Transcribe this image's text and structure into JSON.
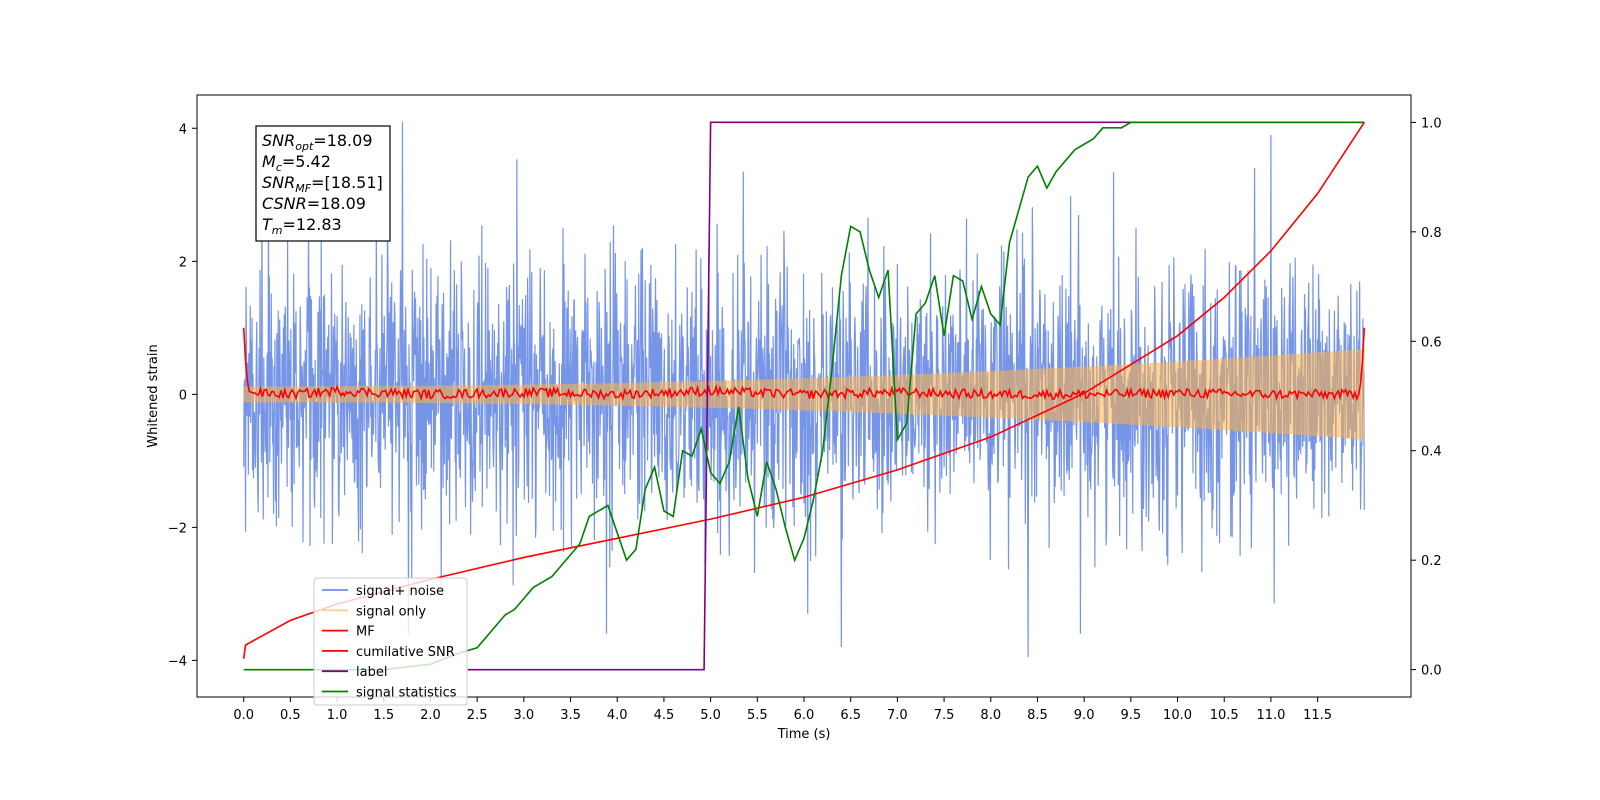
{
  "chart_data": {
    "type": "line",
    "xlabel": "Time (s)",
    "ylabel_left": "Whitened strain",
    "ylabel_right": "",
    "xlim": [
      -0.5,
      12.5
    ],
    "ylim_left": [
      -4.55,
      4.5
    ],
    "ylim_right": [
      -0.05,
      1.05
    ],
    "x_ticks": [
      "0.0",
      "0.5",
      "1.0",
      "1.5",
      "2.0",
      "2.5",
      "3.0",
      "3.5",
      "4.0",
      "4.5",
      "5.0",
      "5.5",
      "6.0",
      "6.5",
      "7.0",
      "7.5",
      "8.0",
      "8.5",
      "9.0",
      "9.5",
      "10.0",
      "10.5",
      "11.0",
      "11.5"
    ],
    "y_ticks_left": [
      "4",
      "2",
      "0",
      "−2",
      "−4"
    ],
    "y_ticks_right": [
      "1.0",
      "0.8",
      "0.6",
      "0.4",
      "0.2",
      "0.0"
    ],
    "grid": false,
    "legend_position": "lower-left",
    "info_box": {
      "lines": [
        {
          "main": "SNR",
          "sub": "opt",
          "rest": "=18.09"
        },
        {
          "main": "M",
          "sub": "c",
          "rest": "=5.42"
        },
        {
          "main": "SNR",
          "sub": "MF",
          "rest": "=[18.51]"
        },
        {
          "main": "CSNR",
          "sub": "",
          "rest": "=18.09"
        },
        {
          "main": "T",
          "sub": "m",
          "rest": "=12.83"
        }
      ]
    },
    "series": [
      {
        "name": "signal+ noise",
        "axis": "left",
        "color": "#6f8fe6",
        "kind": "noise",
        "x_range": [
          0,
          12
        ],
        "envelope": [
          -1.0,
          1.0
        ],
        "peaks": [
          {
            "x": 1.7,
            "y": 4.1
          },
          {
            "x": 11.0,
            "y": 3.9
          },
          {
            "x": 8.4,
            "y": -3.95
          },
          {
            "x": 6.4,
            "y": -3.8
          },
          {
            "x": 5.35,
            "y": 3.35
          }
        ]
      },
      {
        "name": "signal only",
        "axis": "left",
        "color": "#ffb347",
        "kind": "chirp",
        "x_range": [
          0,
          12
        ],
        "amplitude_start": 0.12,
        "amplitude_end": 0.68
      },
      {
        "name": "MF",
        "axis": "left",
        "color": "#ff0000",
        "x": [
          0.0,
          0.02,
          0.05,
          0.1,
          0.5,
          1.0,
          2.0,
          3.0,
          4.0,
          5.0,
          6.0,
          7.0,
          8.0,
          9.0,
          10.0,
          11.0,
          11.95,
          11.98,
          12.0
        ],
        "y": [
          1.0,
          0.5,
          0.05,
          0.02,
          0.0,
          0.05,
          0.0,
          0.03,
          0.0,
          0.05,
          0.0,
          0.03,
          0.0,
          0.0,
          0.02,
          0.0,
          0.0,
          0.5,
          1.0
        ]
      },
      {
        "name": "cumilative SNR",
        "axis": "right",
        "color": "#ff0000",
        "x": [
          0.0,
          0.02,
          0.5,
          1.0,
          2.0,
          3.0,
          4.0,
          5.0,
          6.0,
          7.0,
          8.0,
          9.0,
          10.0,
          10.5,
          11.0,
          11.5,
          12.0
        ],
        "y": [
          0.02,
          0.045,
          0.09,
          0.12,
          0.165,
          0.205,
          0.24,
          0.275,
          0.315,
          0.365,
          0.425,
          0.505,
          0.61,
          0.68,
          0.765,
          0.87,
          1.0
        ]
      },
      {
        "name": "label",
        "axis": "right",
        "color": "#800080",
        "x": [
          2.4,
          4.93,
          5.0,
          12.0
        ],
        "y": [
          0.0,
          0.0,
          1.0,
          1.0
        ]
      },
      {
        "name": "signal statistics",
        "axis": "right",
        "color": "#008000",
        "x": [
          0.0,
          0.5,
          1.0,
          1.5,
          2.0,
          2.3,
          2.5,
          2.6,
          2.7,
          2.8,
          2.9,
          3.0,
          3.1,
          3.2,
          3.3,
          3.4,
          3.5,
          3.6,
          3.7,
          3.8,
          3.9,
          4.0,
          4.1,
          4.2,
          4.3,
          4.4,
          4.5,
          4.6,
          4.7,
          4.8,
          4.9,
          5.0,
          5.1,
          5.2,
          5.3,
          5.4,
          5.5,
          5.6,
          5.7,
          5.8,
          5.9,
          6.0,
          6.1,
          6.2,
          6.3,
          6.4,
          6.5,
          6.6,
          6.7,
          6.8,
          6.9,
          7.0,
          7.1,
          7.2,
          7.3,
          7.4,
          7.5,
          7.6,
          7.7,
          7.8,
          7.9,
          8.0,
          8.1,
          8.2,
          8.3,
          8.4,
          8.5,
          8.6,
          8.7,
          8.8,
          8.9,
          9.0,
          9.1,
          9.2,
          9.3,
          9.4,
          9.5,
          9.8,
          10.0,
          11.0,
          12.0
        ],
        "y": [
          0.0,
          0.0,
          0.0,
          0.0,
          0.01,
          0.03,
          0.04,
          0.06,
          0.08,
          0.1,
          0.11,
          0.13,
          0.15,
          0.16,
          0.17,
          0.19,
          0.21,
          0.23,
          0.28,
          0.29,
          0.3,
          0.25,
          0.2,
          0.22,
          0.33,
          0.37,
          0.29,
          0.28,
          0.4,
          0.39,
          0.44,
          0.36,
          0.34,
          0.38,
          0.48,
          0.35,
          0.28,
          0.38,
          0.33,
          0.26,
          0.2,
          0.24,
          0.31,
          0.4,
          0.55,
          0.72,
          0.81,
          0.8,
          0.73,
          0.68,
          0.73,
          0.42,
          0.45,
          0.65,
          0.67,
          0.72,
          0.61,
          0.72,
          0.71,
          0.64,
          0.7,
          0.65,
          0.63,
          0.78,
          0.84,
          0.9,
          0.92,
          0.88,
          0.91,
          0.93,
          0.95,
          0.96,
          0.97,
          0.99,
          0.99,
          0.99,
          1.0,
          1.0,
          1.0,
          1.0,
          1.0
        ]
      }
    ]
  }
}
